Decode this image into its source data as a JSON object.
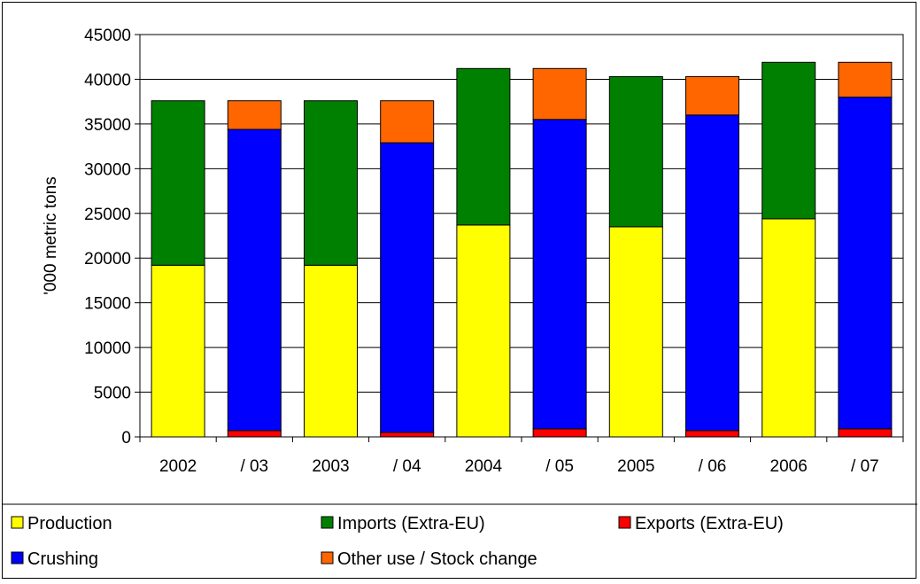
{
  "chart_data": {
    "type": "bar",
    "stacked": true,
    "ylabel": "'000 metric tons",
    "ylim": [
      0,
      45000
    ],
    "yticks": [
      0,
      5000,
      10000,
      15000,
      20000,
      25000,
      30000,
      35000,
      40000,
      45000
    ],
    "grid": true,
    "legend_position": "bottom",
    "categories": [
      "2002",
      "/ 03",
      "2003",
      "/ 04",
      "2004",
      "/ 05",
      "2005",
      "/ 06",
      "2006",
      "/ 07"
    ],
    "series": [
      {
        "name": "Production",
        "color": "#ffff00",
        "values": [
          19200,
          0,
          19200,
          0,
          23700,
          0,
          23500,
          0,
          24400,
          0
        ]
      },
      {
        "name": "Imports (Extra-EU)",
        "color": "#008000",
        "values": [
          18400,
          0,
          18400,
          0,
          17500,
          0,
          16800,
          0,
          17500,
          0
        ]
      },
      {
        "name": "Exports (Extra-EU)",
        "color": "#ff0000",
        "values": [
          0,
          700,
          0,
          500,
          0,
          900,
          0,
          700,
          0,
          900
        ]
      },
      {
        "name": "Crushing",
        "color": "#0000ff",
        "values": [
          0,
          33700,
          0,
          32400,
          0,
          34600,
          0,
          35300,
          0,
          37100
        ]
      },
      {
        "name": "Other use / Stock change",
        "color": "#ff6600",
        "values": [
          0,
          3200,
          0,
          4700,
          0,
          5700,
          0,
          4300,
          0,
          3900
        ]
      }
    ],
    "legend_order": [
      "Production",
      "Imports (Extra-EU)",
      "Exports (Extra-EU)",
      "Crushing",
      "Other use / Stock change"
    ]
  }
}
